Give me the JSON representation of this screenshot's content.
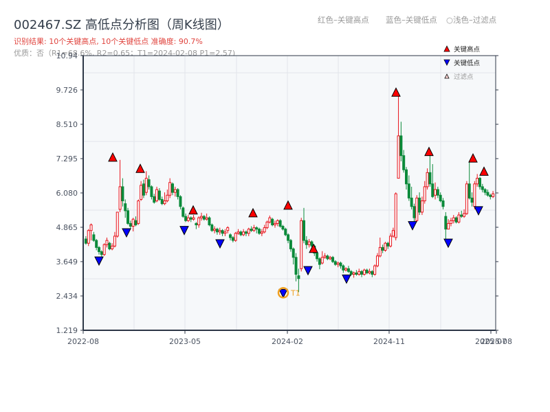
{
  "header": {
    "title": "002467.SZ 高低点分析图（周K线图）",
    "result_text": "识别结果: 10个关键高点, 10个关键低点   准确度: 90.7%",
    "quality_text": "优质：否（R1=68.6%, R2=0.65；T1=2024-02-08 P1=2.57)"
  },
  "top_legend": {
    "red": "红色–关键高点",
    "blue": "蓝色–关键低点",
    "light": "○浅色–过滤点"
  },
  "legend": {
    "high": "关键高点",
    "low": "关键低点",
    "filtered": "过滤点"
  },
  "colors": {
    "up": "#e8121a",
    "down": "#0b8a3a",
    "high_marker": "#ff0000",
    "low_marker": "#0000ff",
    "t1_ring": "#f0a020",
    "plot_bg": "#f6f8fa",
    "axis": "#2c3646",
    "grid": "#e2e5ea"
  },
  "t1_label": "T1",
  "chart_data": {
    "type": "candlestick",
    "title": "002467.SZ 高低点分析图（周K线图）",
    "xlabel": "",
    "ylabel": "",
    "ylim": [
      1.219,
      10.94
    ],
    "y_ticks": [
      1.219,
      2.434,
      3.649,
      4.865,
      6.08,
      7.295,
      8.51,
      9.726,
      10.94
    ],
    "y_tick_labels": [
      "1.219",
      "2.434",
      "3.649",
      "4.865",
      "6.080",
      "7.295",
      "8.510",
      "9.726",
      "10.94"
    ],
    "x_tick_labels": [
      "2022-08",
      "2023-05",
      "2024-02",
      "2024-11",
      "2025-07",
      "2025-08"
    ],
    "grid": true,
    "legend_position": "upper right",
    "legend": [
      "关键高点",
      "关键低点",
      "过滤点"
    ],
    "key_highs": [
      {
        "date": "2022-10",
        "price": 7.25
      },
      {
        "date": "2022-12",
        "price": 6.85
      },
      {
        "date": "2023-05",
        "price": 5.38
      },
      {
        "date": "2023-10",
        "price": 5.28
      },
      {
        "date": "2024-02",
        "price": 5.55
      },
      {
        "date": "2024-04",
        "price": 4.02
      },
      {
        "date": "2024-11",
        "price": 9.55
      },
      {
        "date": "2025-01",
        "price": 7.45
      },
      {
        "date": "2025-05",
        "price": 7.22
      },
      {
        "date": "2025-06",
        "price": 6.75
      }
    ],
    "key_lows": [
      {
        "date": "2022-09",
        "price": 3.72
      },
      {
        "date": "2022-11",
        "price": 4.72
      },
      {
        "date": "2023-05",
        "price": 4.8
      },
      {
        "date": "2023-07",
        "price": 4.33
      },
      {
        "date": "2024-02",
        "price": 2.57
      },
      {
        "date": "2024-04",
        "price": 3.38
      },
      {
        "date": "2024-07",
        "price": 3.08
      },
      {
        "date": "2024-12",
        "price": 4.97
      },
      {
        "date": "2025-03",
        "price": 4.35
      },
      {
        "date": "2025-06",
        "price": 5.5
      }
    ],
    "annotations": [
      {
        "label": "T1",
        "date": "2024-02-08",
        "price": 2.57
      }
    ],
    "candles": [
      [
        4.45,
        4.3,
        4.55,
        4.25
      ],
      [
        4.3,
        4.75,
        4.8,
        4.2
      ],
      [
        4.75,
        4.95,
        5.0,
        4.4
      ],
      [
        4.6,
        4.4,
        4.7,
        4.35
      ],
      [
        4.4,
        4.15,
        4.45,
        4.05
      ],
      [
        4.15,
        4.0,
        4.2,
        3.9
      ],
      [
        4.0,
        3.9,
        4.05,
        3.72
      ],
      [
        3.9,
        4.25,
        4.3,
        3.85
      ],
      [
        4.25,
        4.4,
        4.5,
        4.15
      ],
      [
        4.3,
        4.1,
        4.35,
        4.05
      ],
      [
        4.1,
        4.2,
        4.3,
        4.05
      ],
      [
        4.2,
        4.55,
        4.7,
        4.15
      ],
      [
        4.55,
        5.4,
        5.4,
        4.5
      ],
      [
        5.5,
        6.3,
        7.25,
        5.4
      ],
      [
        6.3,
        5.8,
        6.6,
        5.6
      ],
      [
        5.7,
        5.45,
        5.85,
        5.2
      ],
      [
        5.45,
        5.0,
        5.55,
        4.95
      ],
      [
        5.0,
        4.9,
        5.1,
        4.8
      ],
      [
        4.9,
        5.15,
        5.2,
        4.72
      ],
      [
        5.1,
        4.95,
        5.25,
        4.9
      ],
      [
        5.0,
        5.8,
        5.85,
        4.95
      ],
      [
        5.85,
        6.35,
        6.5,
        5.8
      ],
      [
        6.4,
        6.0,
        6.55,
        5.9
      ],
      [
        6.1,
        6.6,
        6.85,
        6.0
      ],
      [
        6.55,
        6.3,
        6.7,
        6.2
      ],
      [
        6.3,
        5.95,
        6.35,
        5.85
      ],
      [
        5.95,
        5.75,
        6.05,
        5.7
      ],
      [
        5.8,
        6.2,
        6.3,
        5.75
      ],
      [
        6.15,
        5.85,
        6.25,
        5.8
      ],
      [
        5.85,
        5.7,
        5.95,
        5.65
      ],
      [
        5.7,
        5.8,
        6.1,
        5.65
      ],
      [
        5.8,
        6.0,
        6.2,
        5.75
      ],
      [
        6.0,
        6.45,
        6.6,
        5.9
      ],
      [
        6.4,
        6.1,
        6.45,
        6.0
      ],
      [
        6.1,
        6.2,
        6.3,
        5.95
      ],
      [
        6.2,
        5.95,
        6.25,
        5.85
      ],
      [
        5.95,
        5.6,
        6.0,
        5.5
      ],
      [
        5.55,
        5.25,
        5.6,
        5.2
      ],
      [
        5.25,
        5.1,
        5.35,
        5.05
      ],
      [
        5.1,
        5.2,
        5.3,
        5.05
      ],
      [
        5.2,
        5.15,
        5.25,
        5.05
      ],
      [
        5.15,
        5.2,
        5.3,
        5.1
      ],
      [
        5.0,
        4.95,
        5.05,
        4.8
      ],
      [
        4.95,
        5.2,
        5.25,
        4.85
      ],
      [
        5.2,
        5.25,
        5.38,
        5.1
      ],
      [
        5.25,
        5.15,
        5.3,
        5.1
      ],
      [
        5.15,
        5.2,
        5.35,
        5.1
      ],
      [
        5.2,
        4.95,
        5.25,
        4.9
      ],
      [
        4.95,
        4.75,
        5.0,
        4.7
      ],
      [
        4.75,
        4.8,
        4.9,
        4.65
      ],
      [
        4.8,
        4.7,
        4.85,
        4.6
      ],
      [
        4.7,
        4.75,
        4.85,
        4.6
      ],
      [
        4.75,
        4.65,
        4.8,
        4.55
      ],
      [
        4.65,
        4.7,
        4.8,
        4.55
      ],
      [
        4.75,
        4.85,
        4.9,
        4.65
      ],
      [
        4.6,
        4.5,
        4.65,
        4.4
      ],
      [
        4.5,
        4.4,
        4.55,
        4.33
      ],
      [
        4.4,
        4.65,
        4.7,
        4.35
      ],
      [
        4.65,
        4.7,
        4.8,
        4.6
      ],
      [
        4.7,
        4.6,
        4.75,
        4.55
      ],
      [
        4.6,
        4.7,
        4.8,
        4.55
      ],
      [
        4.7,
        4.65,
        4.75,
        4.55
      ],
      [
        4.65,
        4.8,
        4.85,
        4.55
      ],
      [
        4.8,
        4.75,
        4.9,
        4.7
      ],
      [
        4.75,
        4.85,
        4.95,
        4.7
      ],
      [
        4.85,
        4.8,
        4.9,
        4.65
      ],
      [
        4.8,
        4.65,
        4.85,
        4.6
      ],
      [
        4.65,
        4.7,
        4.8,
        4.55
      ],
      [
        4.7,
        4.85,
        4.95,
        4.65
      ],
      [
        4.85,
        5.05,
        5.1,
        4.8
      ],
      [
        5.05,
        5.2,
        5.28,
        5.0
      ],
      [
        5.15,
        4.95,
        5.2,
        4.9
      ],
      [
        4.95,
        5.0,
        5.1,
        4.85
      ],
      [
        5.0,
        5.1,
        5.15,
        4.9
      ],
      [
        5.1,
        4.9,
        5.15,
        4.85
      ],
      [
        4.9,
        4.8,
        4.95,
        4.75
      ],
      [
        4.8,
        4.6,
        4.85,
        4.55
      ],
      [
        4.6,
        4.4,
        4.65,
        4.3
      ],
      [
        4.4,
        4.1,
        4.45,
        4.0
      ],
      [
        4.1,
        3.8,
        4.15,
        3.55
      ],
      [
        3.8,
        3.2,
        3.95,
        2.95
      ],
      [
        3.15,
        3.05,
        3.4,
        2.57
      ],
      [
        3.4,
        5.1,
        5.2,
        3.3
      ],
      [
        5.1,
        4.4,
        5.55,
        4.3
      ],
      [
        4.4,
        4.25,
        4.55,
        4.1
      ],
      [
        4.25,
        4.35,
        4.45,
        4.15
      ],
      [
        4.35,
        4.2,
        4.4,
        4.1
      ],
      [
        4.2,
        3.95,
        4.25,
        3.85
      ],
      [
        3.95,
        3.75,
        4.0,
        3.65
      ],
      [
        3.75,
        3.55,
        3.8,
        3.38
      ],
      [
        3.6,
        3.8,
        4.02,
        3.55
      ],
      [
        3.8,
        3.85,
        3.95,
        3.75
      ],
      [
        3.85,
        3.75,
        3.9,
        3.7
      ],
      [
        3.75,
        3.8,
        3.85,
        3.7
      ],
      [
        3.8,
        3.65,
        3.85,
        3.6
      ],
      [
        3.65,
        3.55,
        3.7,
        3.5
      ],
      [
        3.55,
        3.6,
        3.65,
        3.45
      ],
      [
        3.6,
        3.5,
        3.65,
        3.4
      ],
      [
        3.5,
        3.35,
        3.55,
        3.25
      ],
      [
        3.35,
        3.4,
        3.45,
        3.3
      ],
      [
        3.4,
        3.3,
        3.5,
        3.25
      ],
      [
        3.3,
        3.2,
        3.35,
        3.15
      ],
      [
        3.2,
        3.25,
        3.3,
        3.08
      ],
      [
        3.25,
        3.2,
        3.35,
        3.15
      ],
      [
        3.2,
        3.3,
        3.4,
        3.15
      ],
      [
        3.3,
        3.2,
        3.35,
        3.1
      ],
      [
        3.2,
        3.35,
        3.4,
        3.15
      ],
      [
        3.35,
        3.25,
        3.4,
        3.2
      ],
      [
        3.25,
        3.3,
        3.4,
        3.2
      ],
      [
        3.3,
        3.2,
        3.35,
        3.1
      ],
      [
        3.2,
        3.5,
        3.55,
        3.15
      ],
      [
        3.5,
        3.85,
        3.95,
        3.45
      ],
      [
        3.85,
        4.15,
        4.5,
        3.8
      ],
      [
        4.15,
        4.05,
        4.25,
        3.95
      ],
      [
        4.05,
        4.3,
        4.35,
        4.0
      ],
      [
        4.3,
        4.2,
        4.35,
        4.1
      ],
      [
        4.2,
        4.55,
        4.65,
        4.15
      ],
      [
        4.55,
        4.75,
        4.85,
        4.5
      ],
      [
        4.5,
        6.05,
        6.1,
        4.4
      ],
      [
        6.6,
        8.1,
        9.55,
        6.6
      ],
      [
        8.1,
        7.4,
        8.6,
        7.2
      ],
      [
        7.4,
        6.9,
        7.6,
        6.8
      ],
      [
        6.9,
        6.4,
        7.0,
        6.2
      ],
      [
        6.4,
        5.9,
        6.7,
        5.8
      ],
      [
        5.9,
        5.6,
        6.3,
        5.5
      ],
      [
        5.6,
        5.2,
        5.7,
        4.97
      ],
      [
        5.1,
        5.9,
        6.0,
        5.05
      ],
      [
        5.9,
        5.4,
        6.1,
        5.3
      ],
      [
        5.4,
        5.8,
        5.95,
        5.3
      ],
      [
        5.8,
        6.3,
        6.5,
        5.7
      ],
      [
        6.3,
        6.8,
        6.95,
        6.2
      ],
      [
        6.8,
        6.4,
        7.45,
        6.3
      ],
      [
        6.4,
        5.95,
        7.1,
        5.9
      ],
      [
        6.0,
        6.2,
        6.45,
        5.85
      ],
      [
        6.2,
        6.0,
        6.3,
        5.9
      ],
      [
        6.0,
        5.8,
        6.1,
        5.75
      ],
      [
        5.8,
        5.6,
        5.9,
        5.5
      ],
      [
        5.25,
        4.8,
        5.4,
        4.35
      ],
      [
        4.8,
        5.0,
        5.15,
        4.9
      ],
      [
        5.0,
        5.1,
        5.2,
        4.9
      ],
      [
        5.1,
        5.2,
        5.3,
        5.0
      ],
      [
        5.2,
        5.05,
        5.25,
        5.0
      ],
      [
        5.05,
        5.3,
        5.4,
        5.0
      ],
      [
        5.3,
        5.25,
        5.45,
        5.2
      ],
      [
        5.25,
        5.35,
        5.5,
        5.2
      ],
      [
        5.35,
        6.4,
        6.5,
        5.3
      ],
      [
        6.4,
        5.9,
        7.22,
        5.85
      ],
      [
        5.9,
        5.75,
        6.1,
        5.6
      ],
      [
        5.6,
        6.4,
        6.5,
        5.5
      ],
      [
        6.4,
        6.6,
        6.75,
        6.3
      ],
      [
        6.6,
        6.3,
        6.65,
        6.2
      ],
      [
        6.3,
        6.2,
        6.4,
        6.1
      ],
      [
        6.2,
        6.1,
        6.25,
        6.0
      ],
      [
        6.1,
        6.0,
        6.2,
        5.95
      ],
      [
        6.0,
        5.95,
        6.05,
        5.85
      ],
      [
        5.95,
        6.05,
        6.15,
        5.9
      ]
    ]
  }
}
